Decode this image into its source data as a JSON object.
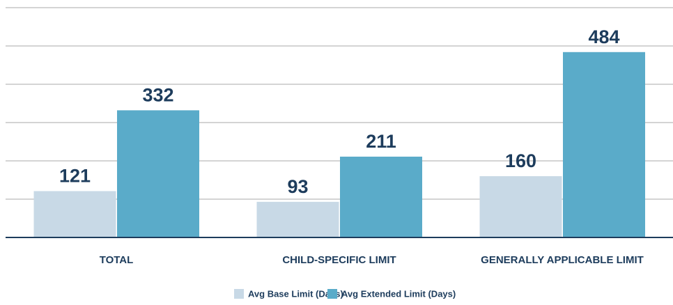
{
  "chart_data": {
    "type": "bar",
    "categories": [
      "TOTAL",
      "CHILD-SPECIFIC LIMIT",
      "GENERALLY APPLICABLE LIMIT"
    ],
    "series": [
      {
        "name": "Avg Base Limit (Days)",
        "color": "#c8d9e6",
        "values": [
          121,
          93,
          160
        ]
      },
      {
        "name": "Avg Extended Limit (Days)",
        "color": "#5aabc9",
        "values": [
          332,
          211,
          484
        ]
      }
    ],
    "ylim": [
      0,
      600
    ],
    "yticks": [
      0,
      100,
      200,
      300,
      400,
      500,
      600
    ],
    "grid": true,
    "legend": "bottom"
  }
}
